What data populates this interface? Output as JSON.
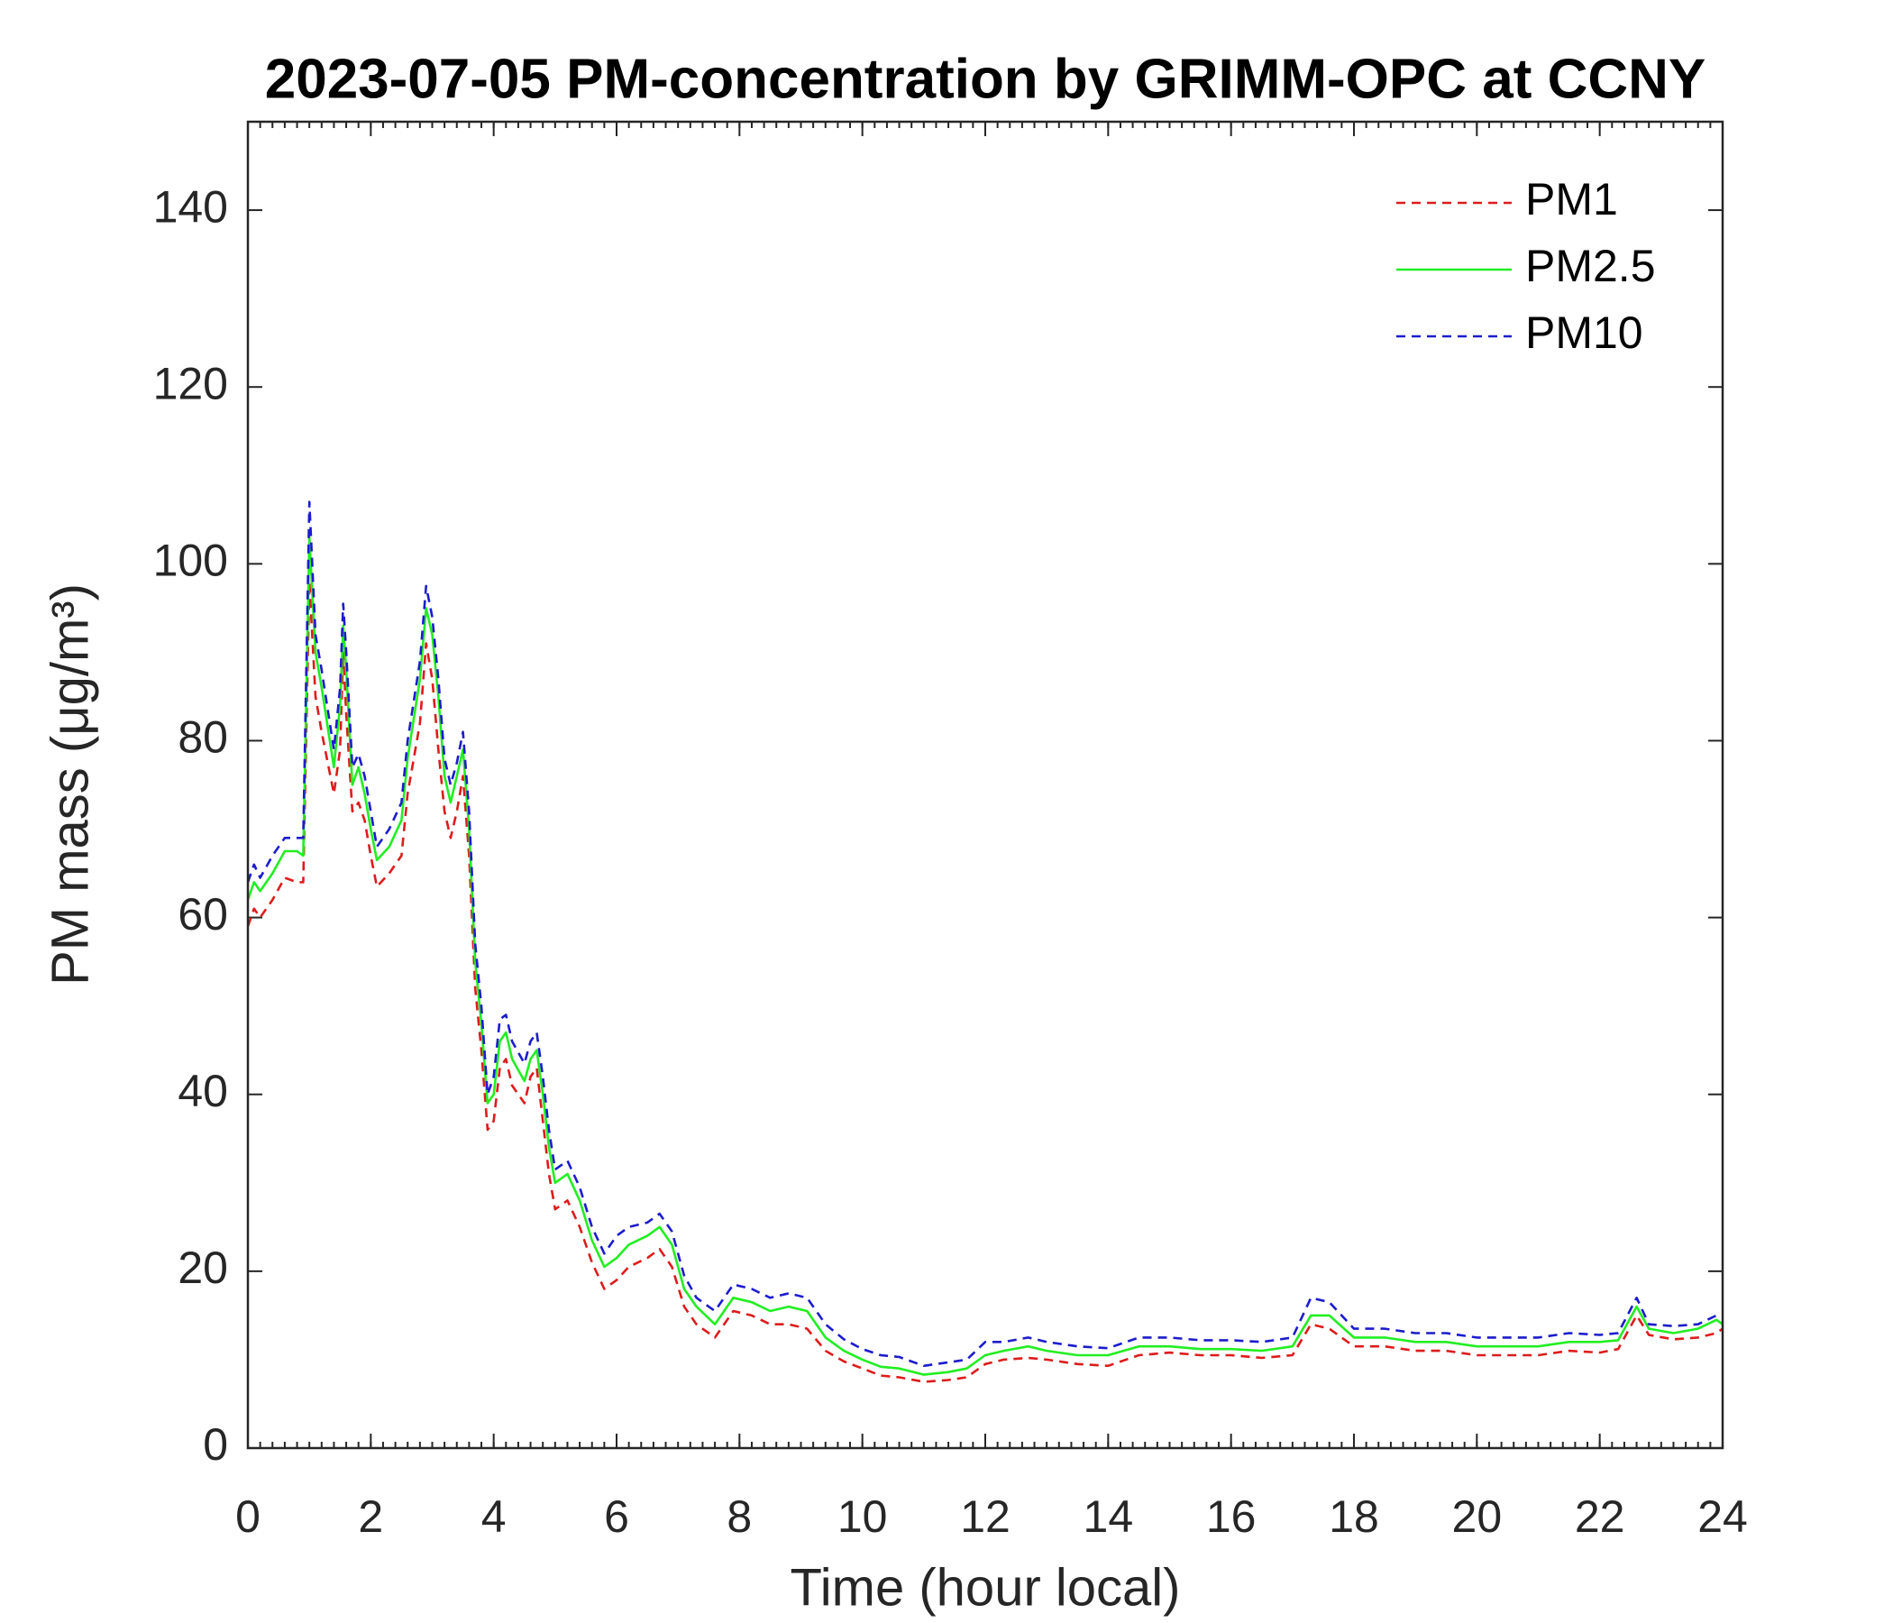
{
  "chart_data": {
    "type": "line",
    "title": "2023-07-05 PM-concentration by GRIMM-OPC at CCNY",
    "xlabel": "Time (hour local)",
    "ylabel": "PM mass (μg/m³)",
    "x": [
      0,
      0.1,
      0.2,
      0.4,
      0.6,
      0.8,
      0.9,
      1.0,
      1.1,
      1.2,
      1.4,
      1.5,
      1.55,
      1.6,
      1.7,
      1.8,
      1.9,
      2.0,
      2.1,
      2.3,
      2.5,
      2.6,
      2.8,
      2.9,
      3.0,
      3.1,
      3.2,
      3.3,
      3.4,
      3.5,
      3.6,
      3.7,
      3.8,
      3.9,
      4.0,
      4.1,
      4.2,
      4.3,
      4.5,
      4.6,
      4.7,
      4.8,
      4.9,
      5.0,
      5.2,
      5.4,
      5.6,
      5.8,
      6.0,
      6.2,
      6.5,
      6.7,
      6.9,
      7.1,
      7.3,
      7.6,
      7.9,
      8.2,
      8.5,
      8.8,
      9.1,
      9.4,
      9.7,
      10.0,
      10.3,
      10.6,
      11.0,
      11.4,
      11.7,
      12.0,
      12.3,
      12.7,
      13.0,
      13.5,
      14.0,
      14.5,
      15.0,
      15.5,
      16.0,
      16.5,
      17.0,
      17.3,
      17.6,
      18.0,
      18.5,
      19.0,
      19.5,
      20.0,
      20.5,
      21.0,
      21.5,
      22.0,
      22.3,
      22.6,
      22.8,
      23.2,
      23.6,
      23.9,
      24
    ],
    "series": [
      {
        "name": "PM1",
        "color": "#dd1c1c",
        "linestyle": "--",
        "values": [
          59,
          61,
          60,
          62,
          64.5,
          64,
          64,
          98,
          85,
          81,
          74,
          79,
          90,
          83,
          72,
          73,
          71,
          67,
          63.5,
          65,
          67,
          74,
          82,
          91,
          87,
          79,
          72,
          69,
          72,
          76,
          67,
          52,
          45,
          36,
          37,
          43,
          44,
          41,
          39,
          42,
          43,
          37,
          31,
          27,
          28,
          25,
          21,
          18,
          19,
          20.5,
          21.5,
          22.5,
          20.5,
          16,
          14,
          12.5,
          15.5,
          15,
          14,
          14,
          13.5,
          11,
          9.8,
          9,
          8.2,
          8,
          7.5,
          7.7,
          8,
          9.5,
          10,
          10.2,
          10,
          9.5,
          9.3,
          10.5,
          10.8,
          10.5,
          10.5,
          10.2,
          10.5,
          14,
          13.5,
          11.5,
          11.5,
          11,
          11,
          10.5,
          10.5,
          10.5,
          11,
          10.8,
          11.2,
          15,
          12.8,
          12.3,
          12.5,
          13,
          13.5
        ]
      },
      {
        "name": "PM2.5",
        "color": "#22ee22",
        "linestyle": "-",
        "values": [
          62,
          64,
          63,
          65,
          67.5,
          67.5,
          67,
          103,
          90,
          86,
          77,
          84,
          93,
          88,
          75,
          77,
          74,
          70,
          66.5,
          68,
          71,
          78,
          87,
          95,
          92,
          85,
          76,
          73,
          76,
          79,
          70,
          55,
          48,
          39,
          40,
          46,
          47,
          44,
          41.5,
          44,
          45,
          40,
          34,
          30,
          31,
          28,
          23.5,
          20.5,
          21.5,
          23,
          24,
          25,
          23,
          18,
          16,
          14,
          17,
          16.5,
          15.5,
          16,
          15.5,
          12.5,
          11,
          10,
          9.2,
          9,
          8.3,
          8.6,
          9,
          10.5,
          11,
          11.5,
          11,
          10.5,
          10.5,
          11.5,
          11.5,
          11.2,
          11.2,
          11,
          11.5,
          15,
          15,
          12.5,
          12.5,
          12,
          12,
          11.5,
          11.5,
          11.5,
          12,
          12,
          12.2,
          16,
          13.5,
          13,
          13.5,
          14.5,
          14
        ]
      },
      {
        "name": "PM10",
        "color": "#1c1ccc",
        "linestyle": "--",
        "values": [
          64,
          66,
          64.5,
          67,
          69,
          69,
          69,
          107,
          92,
          88,
          79,
          86,
          95.5,
          90,
          77,
          78.5,
          76,
          72,
          68,
          70,
          73,
          80,
          89,
          97.5,
          94,
          87,
          78,
          75,
          77.5,
          81,
          72,
          57,
          50,
          40,
          42,
          48.5,
          49,
          46,
          43.5,
          46,
          47,
          42,
          36,
          31.5,
          32.5,
          29.5,
          25,
          22,
          24,
          25,
          25.5,
          26.5,
          24.5,
          19.5,
          17,
          15.5,
          18.5,
          18,
          17,
          17.5,
          17,
          14,
          12.3,
          11.2,
          10.5,
          10.3,
          9.3,
          9.7,
          10,
          12,
          12,
          12.5,
          12,
          11.5,
          11.3,
          12.5,
          12.5,
          12.2,
          12.2,
          12,
          12.5,
          17,
          16.5,
          13.5,
          13.5,
          13,
          13,
          12.5,
          12.5,
          12.5,
          13,
          12.8,
          13,
          17,
          14,
          13.8,
          14,
          15,
          15
        ]
      }
    ],
    "xlim": [
      0,
      24
    ],
    "xticks": [
      0,
      2,
      4,
      6,
      8,
      10,
      12,
      14,
      16,
      18,
      20,
      22,
      24
    ],
    "xminor_step": 0.2,
    "ylim": [
      0,
      150
    ],
    "yticks": [
      0,
      20,
      40,
      60,
      80,
      100,
      120,
      140
    ],
    "grid": false,
    "legend": "upper right"
  }
}
